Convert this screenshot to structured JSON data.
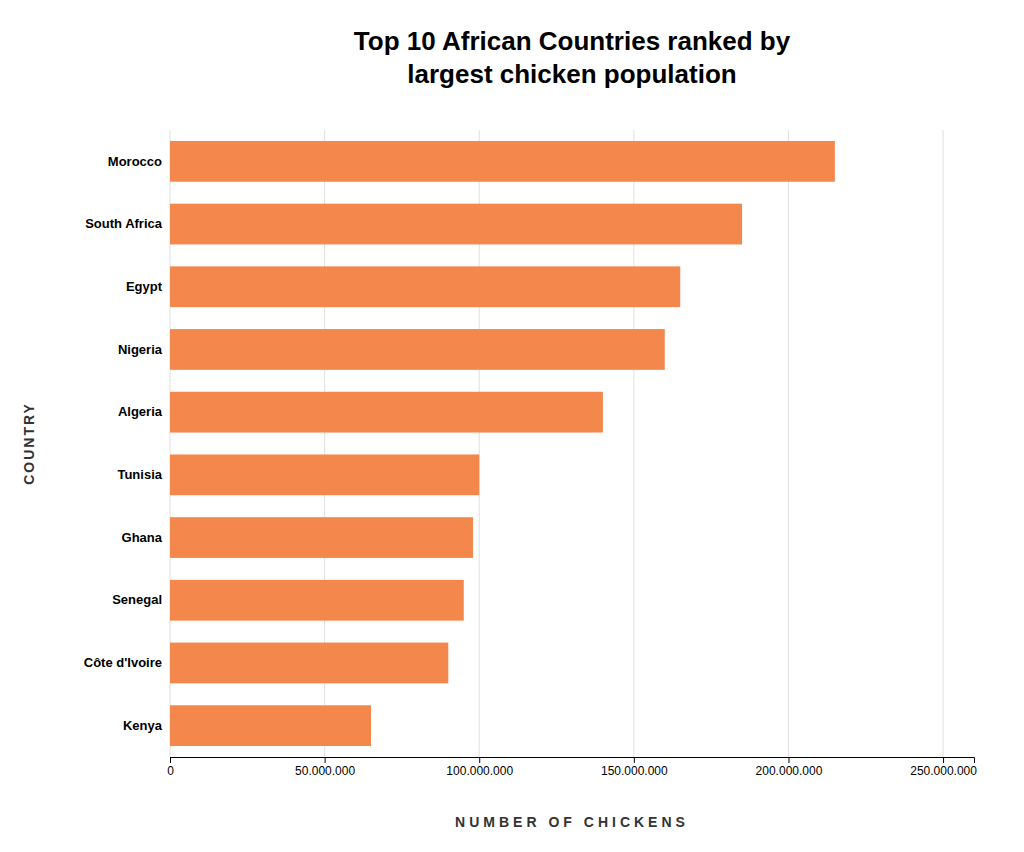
{
  "chart_data": {
    "type": "bar",
    "orientation": "horizontal",
    "title": "Top 10 African Countries ranked by\nlargest chicken population",
    "x_label": "NUMBER OF CHICKENS",
    "y_label": "COUNTRY",
    "categories": [
      "Morocco",
      "South Africa",
      "Egypt",
      "Nigeria",
      "Algeria",
      "Tunisia",
      "Ghana",
      "Senegal",
      "Côte d'Ivoire",
      "Kenya"
    ],
    "values": [
      215000000,
      185000000,
      165000000,
      160000000,
      140000000,
      100000000,
      98000000,
      95000000,
      90000000,
      65000000
    ],
    "color": "#F4874B",
    "xlim": [
      0,
      260000000
    ],
    "xticks": [
      0,
      {
        "value": 50000000,
        "label": "50.000.000"
      },
      {
        "value": 100000000,
        "label": "100.000.000"
      },
      {
        "value": 150000000,
        "label": "150.000.000"
      },
      {
        "value": 200000000,
        "label": "200.000.000"
      },
      {
        "value": 250000000,
        "label": "250.000.000"
      }
    ],
    "grid": true
  }
}
